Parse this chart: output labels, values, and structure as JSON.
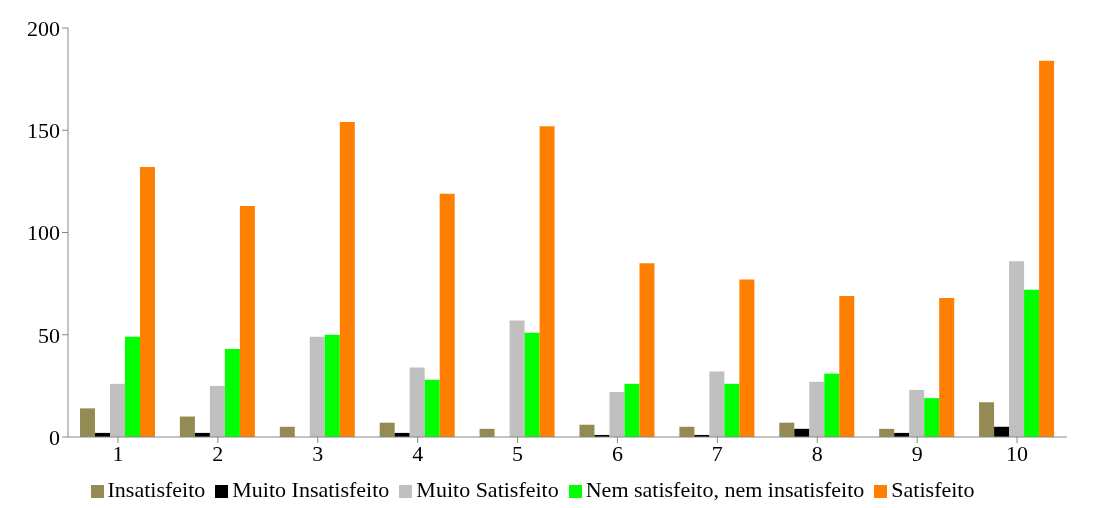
{
  "chart_data": {
    "type": "bar",
    "categories": [
      "1",
      "2",
      "3",
      "4",
      "5",
      "6",
      "7",
      "8",
      "9",
      "10"
    ],
    "series": [
      {
        "name": "Insatisfeito",
        "color": "#948a54",
        "values": [
          14,
          10,
          5,
          7,
          4,
          6,
          5,
          7,
          4,
          17
        ]
      },
      {
        "name": "Muito Insatisfeito",
        "color": "#000000",
        "values": [
          2,
          2,
          0,
          2,
          0,
          1,
          1,
          4,
          2,
          5
        ]
      },
      {
        "name": "Muito Satisfeito",
        "color": "#c0c0c0",
        "values": [
          26,
          25,
          49,
          34,
          57,
          22,
          32,
          27,
          23,
          86
        ]
      },
      {
        "name": "Nem satisfeito, nem insatisfeito",
        "color": "#00ff00",
        "values": [
          49,
          43,
          50,
          28,
          51,
          26,
          26,
          31,
          19,
          72
        ]
      },
      {
        "name": "Satisfeito",
        "color": "#ff8000",
        "values": [
          132,
          113,
          154,
          119,
          152,
          85,
          77,
          69,
          68,
          184
        ]
      }
    ],
    "ylim": [
      0,
      200
    ],
    "yticks": [
      0,
      50,
      100,
      150,
      200
    ],
    "grid": false,
    "legend": "bottom"
  }
}
